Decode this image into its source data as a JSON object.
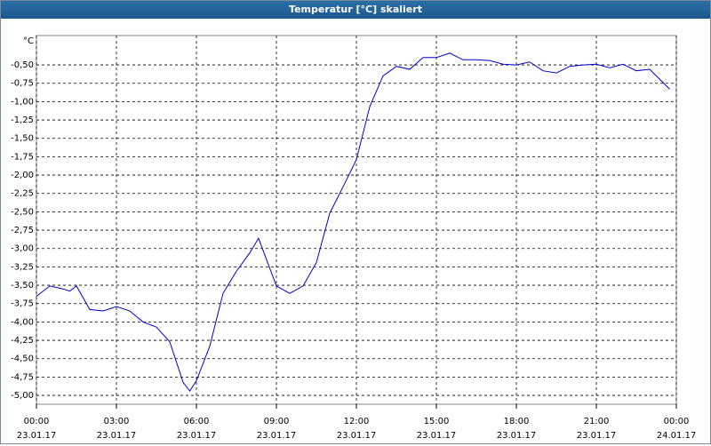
{
  "window_title": "Temperatur [°C] skaliert",
  "chart_data": {
    "type": "line",
    "y_unit_label": "°C",
    "x": [
      0,
      0.5,
      1,
      1.25,
      1.5,
      1.75,
      2,
      2.5,
      3,
      3.5,
      4,
      4.5,
      5,
      5.5,
      5.75,
      6,
      6.5,
      7,
      7.5,
      8,
      8.33,
      9,
      9.5,
      10,
      10.5,
      11,
      11.5,
      12,
      12.5,
      13,
      13.5,
      14,
      14.5,
      15,
      15.5,
      16,
      16.5,
      17,
      17.5,
      18,
      18.5,
      19,
      19.5,
      20,
      20.5,
      21,
      21.5,
      22,
      22.5,
      23,
      23.5,
      23.75
    ],
    "series": [
      {
        "color": "#0000cc",
        "values": [
          -3.65,
          -3.51,
          -3.55,
          -3.58,
          -3.51,
          -3.67,
          -3.83,
          -3.85,
          -3.79,
          -3.85,
          -4.0,
          -4.07,
          -4.27,
          -4.82,
          -4.94,
          -4.8,
          -4.33,
          -3.61,
          -3.31,
          -3.06,
          -2.86,
          -3.51,
          -3.61,
          -3.51,
          -3.19,
          -2.52,
          -2.16,
          -1.79,
          -1.07,
          -0.65,
          -0.52,
          -0.56,
          -0.4,
          -0.4,
          -0.34,
          -0.43,
          -0.43,
          -0.44,
          -0.49,
          -0.5,
          -0.46,
          -0.58,
          -0.61,
          -0.52,
          -0.5,
          -0.49,
          -0.54,
          -0.49,
          -0.58,
          -0.56,
          -0.74,
          -0.83
        ]
      }
    ],
    "xlim": [
      0,
      24
    ],
    "xticks": [
      {
        "value": 0,
        "label": "00:00"
      },
      {
        "value": 3,
        "label": "03:00"
      },
      {
        "value": 6,
        "label": "06:00"
      },
      {
        "value": 9,
        "label": "09:00"
      },
      {
        "value": 12,
        "label": "12:00"
      },
      {
        "value": 15,
        "label": "15:00"
      },
      {
        "value": 18,
        "label": "18:00"
      },
      {
        "value": 21,
        "label": "21:00"
      },
      {
        "value": 24,
        "label": "00:00"
      }
    ],
    "xtick_dates": [
      "23.01.17",
      "23.01.17",
      "23.01.17",
      "23.01.17",
      "23.01.17",
      "23.01.17",
      "23.01.17",
      "23.01.17",
      "24.01.17"
    ],
    "ylim": [
      -5.12,
      -0.1
    ],
    "yticks": [
      {
        "value": -0.5,
        "label": "-0,50"
      },
      {
        "value": -0.75,
        "label": "-0,75"
      },
      {
        "value": -1,
        "label": "-1,00"
      },
      {
        "value": -1.25,
        "label": "-1,25"
      },
      {
        "value": -1.5,
        "label": "-1,50"
      },
      {
        "value": -1.75,
        "label": "-1,75"
      },
      {
        "value": -2,
        "label": "-2,00"
      },
      {
        "value": -2.25,
        "label": "-2,25"
      },
      {
        "value": -2.5,
        "label": "-2,50"
      },
      {
        "value": -2.75,
        "label": "-2,75"
      },
      {
        "value": -3,
        "label": "-3,00"
      },
      {
        "value": -3.25,
        "label": "-3,25"
      },
      {
        "value": -3.5,
        "label": "-3,50"
      },
      {
        "value": -3.75,
        "label": "-3,75"
      },
      {
        "value": -4,
        "label": "-4,00"
      },
      {
        "value": -4.25,
        "label": "-4,25"
      },
      {
        "value": -4.5,
        "label": "-4,50"
      },
      {
        "value": -4.75,
        "label": "-4,75"
      },
      {
        "value": -5,
        "label": "-5,00"
      }
    ],
    "grid": true
  }
}
